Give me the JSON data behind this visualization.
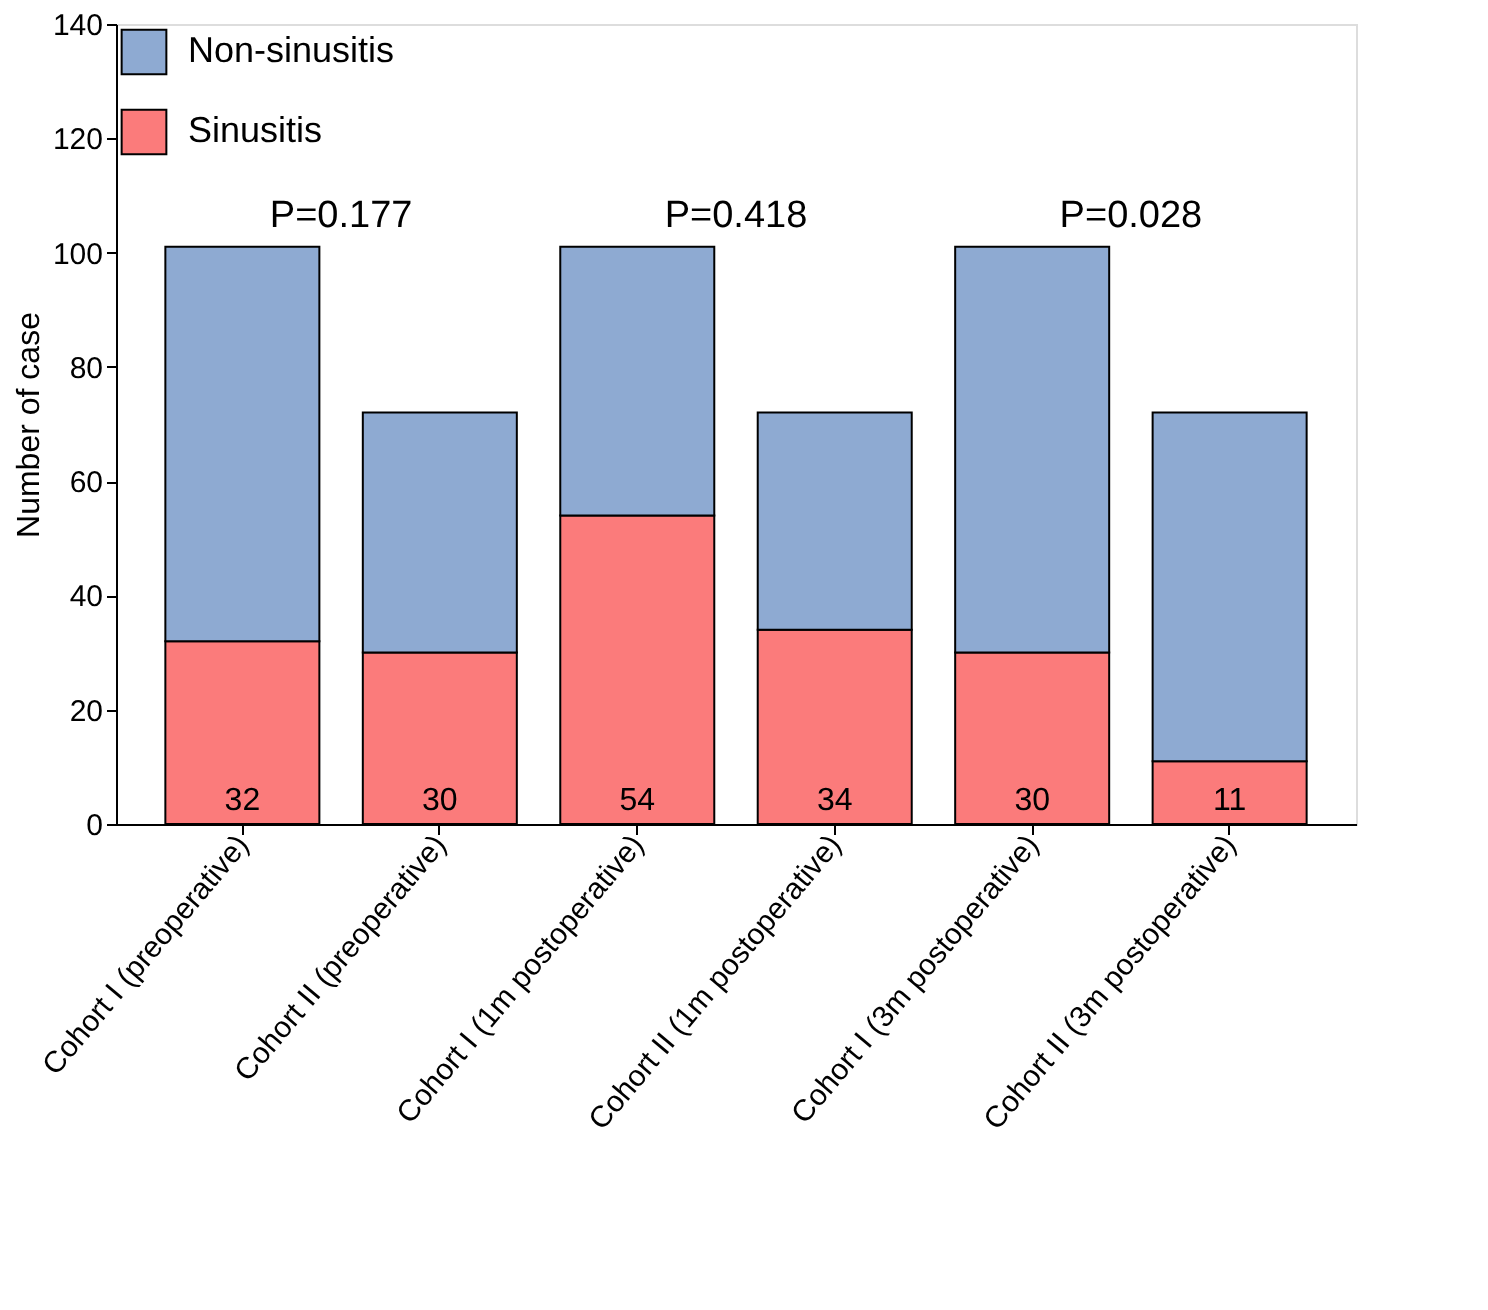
{
  "chart_data": {
    "type": "bar",
    "stacked": true,
    "ylabel": "Number of case",
    "categories": [
      "Cohort I (preoperative)",
      "Cohort II (preoperative)",
      "Cohort I (1m postoperative)",
      "Cohort II (1m postoperative)",
      "Cohort I (3m postoperative)",
      "Cohort II (3m postoperative)"
    ],
    "series": [
      {
        "name": "Sinusitis",
        "color": "#fb7b7b",
        "values": [
          32,
          30,
          54,
          34,
          30,
          11
        ],
        "value_labels": [
          "32",
          "30",
          "54",
          "34",
          "30",
          "11"
        ]
      },
      {
        "name": "Non-sinusitis",
        "color": "#8eaad2",
        "values": [
          69,
          42,
          47,
          38,
          71,
          61
        ]
      }
    ],
    "ylim": [
      0,
      140
    ],
    "yticks": [
      0,
      20,
      40,
      60,
      80,
      100,
      120,
      140
    ],
    "grid": false,
    "legend": "top left",
    "annotations": [
      "P=0.177",
      "P=0.418",
      "P=0.028"
    ]
  }
}
